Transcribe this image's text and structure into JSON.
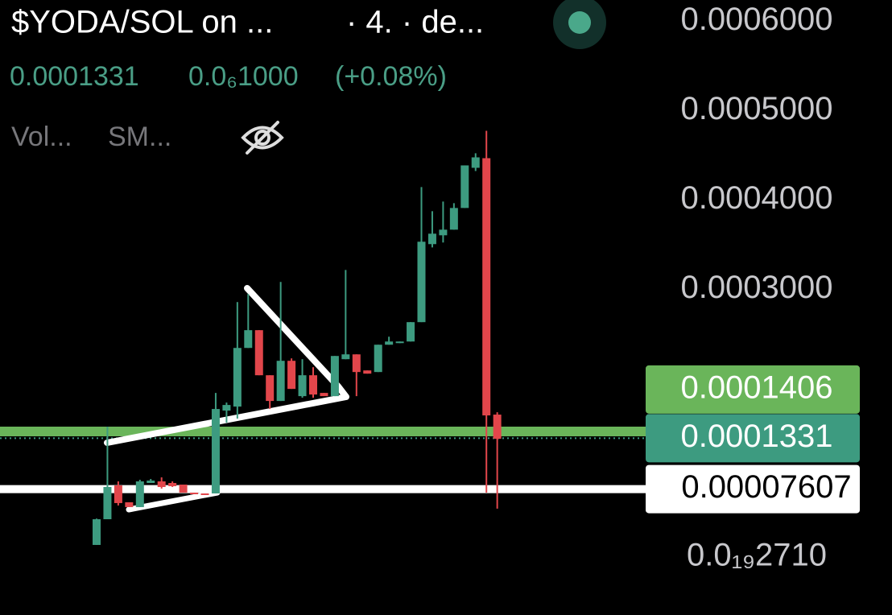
{
  "header": {
    "title": "$YODA/SOL on ...",
    "interval": "· 4. · de...",
    "price": "0.0001331",
    "change": "0.0₆1000",
    "change_pct": "(+0.08%)",
    "indicators": [
      "Vol...",
      "SM..."
    ]
  },
  "chart_data": {
    "type": "candlestick",
    "up_color": "#3d9b80",
    "down_color": "#e2464b",
    "ylim": [
      -6.5e-05,
      0.000624
    ],
    "yticks": [
      {
        "value": 2.71e-20,
        "label": "0.0₁₉2710"
      },
      {
        "value": 0.0003,
        "label": "0.0003000"
      },
      {
        "value": 0.0004,
        "label": "0.0004000"
      },
      {
        "value": 0.0005,
        "label": "0.0005000"
      },
      {
        "value": 0.0006,
        "label": "0.0006000"
      }
    ],
    "price_lines": [
      {
        "value": 0.0001406,
        "color": "#6ab55a",
        "style": "solid"
      },
      {
        "value": 0.0001331,
        "color": "#3d9b80",
        "style": "dotted"
      },
      {
        "value": 7.607e-05,
        "color": "#ffffff",
        "style": "solid"
      }
    ],
    "open": [
      1.35e-05,
      4.23e-05,
      8.02e-05,
      6.13e-05,
      5.59e-05,
      8.29e-05,
      8.47e-05,
      8.29e-05,
      8.11e-05,
      7.21e-05,
      7.12e-05,
      7.12e-05,
      0.000164,
      0.0001685,
      0.0002342,
      0.0002541,
      0.0002036,
      0.0001748,
      0.0002198,
      0.0001802,
      0.0002036,
      0.0001838,
      0.0001802,
      0.0002216,
      0.000227,
      0.000209,
      0.0002072,
      0.0002378,
      0.0002396,
      0.0002414,
      0.0002631,
      0.0003505,
      0.0003604,
      0.0003667,
      0.000391,
      0.000436,
      0.0004468,
      0.0001595
    ],
    "high": [
      4.3e-05,
      0.000146,
      8.47e-05,
      6.13e-05,
      8.65e-05,
      8.74e-05,
      8.92e-05,
      8.47e-05,
      8.11e-05,
      7.21e-05,
      7.12e-05,
      0.0001838,
      0.000173,
      0.0002856,
      0.0002946,
      0.0002541,
      0.0002036,
      0.0003081,
      0.0002225,
      0.0002216,
      0.0002126,
      0.0001838,
      0.0002252,
      0.0003216,
      0.000227,
      0.000209,
      0.0002378,
      0.0002468,
      0.0002414,
      0.0002631,
      0.0004144,
      0.0003874,
      0.0003982,
      0.0003964,
      0.0004387,
      0.0004523,
      0.0004775,
      0.0001622
    ],
    "low": [
      1.35e-05,
      4.23e-05,
      5.77e-05,
      5.59e-05,
      5.59e-05,
      8.29e-05,
      7.66e-05,
      7.84e-05,
      7.21e-05,
      7.03e-05,
      6.94e-05,
      7.12e-05,
      0.0001505,
      0.000155,
      0.0002342,
      0.0002036,
      0.0001658,
      0.0001748,
      0.0001883,
      0.0001784,
      0.0001784,
      0.0001802,
      0.0001802,
      0.0002216,
      0.0001802,
      0.0002054,
      0.0002072,
      0.0002378,
      0.0002396,
      0.0002414,
      0.0002631,
      0.0003468,
      0.0003523,
      0.0003667,
      0.000391,
      0.0004324,
      7.21e-05,
      5.41e-05
    ],
    "close": [
      4.23e-05,
      7.84e-05,
      6.04e-05,
      5.59e-05,
      8.47e-05,
      8.56e-05,
      7.84e-05,
      7.93e-05,
      7.21e-05,
      7.03e-05,
      6.94e-05,
      0.0001658,
      0.0001703,
      0.0002342,
      0.0002541,
      0.0002036,
      0.0001748,
      0.0002198,
      0.0001883,
      0.0002036,
      0.000182,
      0.0001802,
      0.0002252,
      0.000227,
      0.0002072,
      0.0002054,
      0.0002378,
      0.0002414,
      0.0002414,
      0.0002631,
      0.0003532,
      0.0003622,
      0.0003667,
      0.000391,
      0.0004387,
      0.0004477,
      0.0001586,
      0.0001324
    ]
  }
}
